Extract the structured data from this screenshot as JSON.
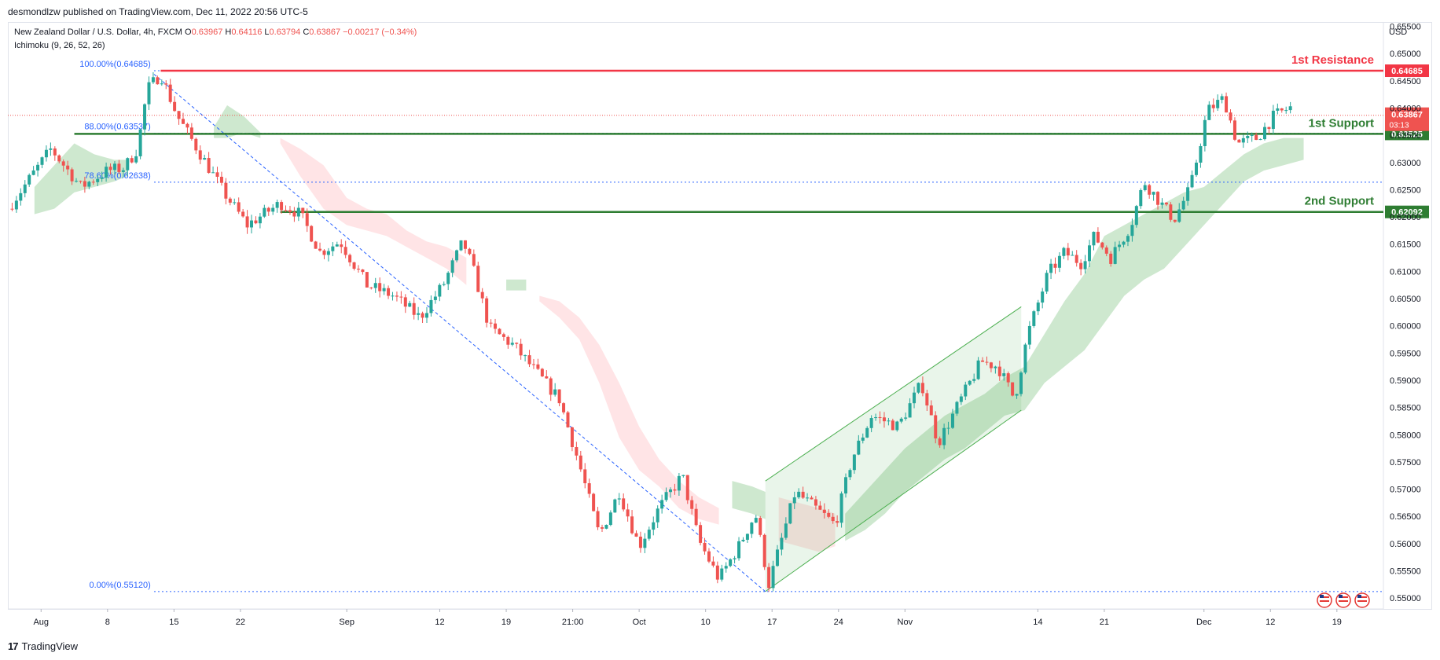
{
  "header": {
    "publisher": "desmondlzw published on TradingView.com, Dec 11, 2022 20:56 UTC-5",
    "symbol": "New Zealand Dollar / U.S. Dollar, 4h, FXCM",
    "ohlc": {
      "o_label": "O",
      "o": "0.63967",
      "h_label": "H",
      "h": "0.64116",
      "l_label": "L",
      "l": "0.63794",
      "c_label": "C",
      "c": "0.63867",
      "change": "−0.00217 (−0.34%)"
    },
    "indicator": "Ichimoku (9, 26, 52, 26)",
    "currency": "USD"
  },
  "footer": {
    "brand": "TradingView",
    "logo": "17"
  },
  "colors": {
    "up": "#26a69a",
    "down": "#ef5350",
    "resistance": "#f23645",
    "support": "#2e7d32",
    "fib": "#2962ff",
    "cloud_up": "#a5d6a7",
    "cloud_down": "#ffcdd2",
    "channel": "#4caf50"
  },
  "chart_data": {
    "type": "candlestick",
    "ylim": [
      0.548,
      0.6558
    ],
    "y_ticks": [
      "0.65500",
      "0.65000",
      "0.64500",
      "0.64000",
      "0.63500",
      "0.63000",
      "0.62500",
      "0.62000",
      "0.61500",
      "0.61000",
      "0.60500",
      "0.60000",
      "0.59500",
      "0.59000",
      "0.58500",
      "0.58000",
      "0.57500",
      "0.57000",
      "0.56500",
      "0.56000",
      "0.55500",
      "0.55000"
    ],
    "x_ticks": [
      {
        "label": "Aug",
        "x": 0.0
      },
      {
        "label": "8",
        "x": 2.0
      },
      {
        "label": "15",
        "x": 4.0
      },
      {
        "label": "22",
        "x": 6.0
      },
      {
        "label": "Sep",
        "x": 9.2
      },
      {
        "label": "12",
        "x": 12.0
      },
      {
        "label": "19",
        "x": 14.0
      },
      {
        "label": "21:00",
        "x": 16.0
      },
      {
        "label": "Oct",
        "x": 18.0
      },
      {
        "label": "10",
        "x": 20.0
      },
      {
        "label": "17",
        "x": 22.0
      },
      {
        "label": "24",
        "x": 24.0
      },
      {
        "label": "Nov",
        "x": 26.0
      },
      {
        "label": "14",
        "x": 30.0
      },
      {
        "label": "21",
        "x": 32.0
      },
      {
        "label": "Dec",
        "x": 35.0
      },
      {
        "label": "12",
        "x": 37.0
      },
      {
        "label": "19",
        "x": 39.0
      }
    ],
    "xlim": [
      -1.0,
      40.4
    ],
    "price_path": [
      [
        -1.0,
        0.6215
      ],
      [
        0.3,
        0.6325
      ],
      [
        1.2,
        0.6255
      ],
      [
        2.0,
        0.6285
      ],
      [
        2.5,
        0.629
      ],
      [
        2.9,
        0.6325
      ],
      [
        3.2,
        0.6435
      ],
      [
        3.6,
        0.6462
      ],
      [
        4.1,
        0.6385
      ],
      [
        4.7,
        0.6325
      ],
      [
        5.5,
        0.6245
      ],
      [
        6.2,
        0.6185
      ],
      [
        7.2,
        0.6225
      ],
      [
        7.8,
        0.6205
      ],
      [
        8.4,
        0.6135
      ],
      [
        9.0,
        0.6155
      ],
      [
        9.8,
        0.6075
      ],
      [
        10.6,
        0.6055
      ],
      [
        11.4,
        0.6015
      ],
      [
        12.1,
        0.6075
      ],
      [
        12.7,
        0.6155
      ],
      [
        13.0,
        0.6105
      ],
      [
        13.5,
        0.5995
      ],
      [
        14.2,
        0.5965
      ],
      [
        14.9,
        0.5915
      ],
      [
        15.6,
        0.5865
      ],
      [
        16.2,
        0.5745
      ],
      [
        16.8,
        0.5615
      ],
      [
        17.4,
        0.5695
      ],
      [
        18.0,
        0.5595
      ],
      [
        18.6,
        0.5665
      ],
      [
        19.3,
        0.5725
      ],
      [
        19.8,
        0.5605
      ],
      [
        20.4,
        0.5535
      ],
      [
        21.0,
        0.5595
      ],
      [
        21.5,
        0.5655
      ],
      [
        21.9,
        0.5525
      ],
      [
        22.7,
        0.5695
      ],
      [
        23.3,
        0.5665
      ],
      [
        23.9,
        0.5635
      ],
      [
        24.4,
        0.5755
      ],
      [
        25.0,
        0.5835
      ],
      [
        25.8,
        0.5815
      ],
      [
        26.5,
        0.5895
      ],
      [
        27.0,
        0.5785
      ],
      [
        27.6,
        0.5855
      ],
      [
        28.3,
        0.5935
      ],
      [
        28.8,
        0.5925
      ],
      [
        29.3,
        0.5865
      ],
      [
        29.7,
        0.5985
      ],
      [
        30.3,
        0.6095
      ],
      [
        30.8,
        0.6135
      ],
      [
        31.3,
        0.6115
      ],
      [
        31.7,
        0.6165
      ],
      [
        32.2,
        0.6125
      ],
      [
        32.8,
        0.6185
      ],
      [
        33.2,
        0.6265
      ],
      [
        33.7,
        0.6225
      ],
      [
        34.1,
        0.6195
      ],
      [
        34.6,
        0.6255
      ],
      [
        35.1,
        0.6395
      ],
      [
        35.6,
        0.6418
      ],
      [
        36.0,
        0.6335
      ],
      [
        36.6,
        0.6345
      ],
      [
        37.1,
        0.6385
      ],
      [
        37.6,
        0.6401
      ]
    ],
    "levels": [
      {
        "name": "1st Resistance",
        "value": 0.64685,
        "price_label": "0.64685",
        "color": "#f23645"
      },
      {
        "name": "1st Support",
        "value": 0.63525,
        "price_label": "0.63525",
        "color": "#2e7d32"
      },
      {
        "name": "2nd Support",
        "value": 0.62092,
        "price_label": "0.62092",
        "color": "#2e7d32"
      }
    ],
    "current_price": {
      "value": 0.63867,
      "label": "0.63867",
      "countdown": "03:13"
    },
    "fibonacci": [
      {
        "label": "100.00%(0.64685)",
        "value": 0.64685
      },
      {
        "label": "88.00%(0.63537)",
        "value": 0.63537
      },
      {
        "label": "78.60%(0.62638)",
        "value": 0.62638
      },
      {
        "label": "0.00%(0.55120)",
        "value": 0.5512
      }
    ],
    "fib_trendline": [
      [
        3.4,
        0.6462
      ],
      [
        21.8,
        0.5512
      ]
    ],
    "channel": {
      "upper": [
        [
          21.8,
          0.5715
        ],
        [
          29.5,
          0.6035
        ]
      ],
      "lower": [
        [
          21.8,
          0.5512
        ],
        [
          29.5,
          0.5845
        ]
      ]
    },
    "cloud": [
      {
        "color": "green",
        "path": [
          [
            -0.2,
            0.6255,
            0.6205
          ],
          [
            0.4,
            0.6295,
            0.6215
          ],
          [
            1.0,
            0.6335,
            0.6245
          ],
          [
            1.6,
            0.6315,
            0.6255
          ],
          [
            2.2,
            0.6305,
            0.6265
          ],
          [
            2.6,
            0.6305,
            0.6275
          ]
        ]
      },
      {
        "color": "green",
        "path": [
          [
            5.2,
            0.6365,
            0.6345
          ],
          [
            5.6,
            0.6405,
            0.6345
          ],
          [
            6.1,
            0.6385,
            0.6355
          ],
          [
            6.6,
            0.6355,
            0.6345
          ]
        ]
      },
      {
        "color": "red",
        "path": [
          [
            7.2,
            0.6345,
            0.6335
          ],
          [
            7.8,
            0.6325,
            0.6275
          ],
          [
            8.5,
            0.6295,
            0.6215
          ],
          [
            9.2,
            0.6235,
            0.6185
          ],
          [
            9.8,
            0.6215,
            0.6175
          ],
          [
            10.4,
            0.6205,
            0.6165
          ],
          [
            11.0,
            0.6175,
            0.6145
          ],
          [
            11.6,
            0.6155,
            0.6125
          ],
          [
            12.2,
            0.6145,
            0.6105
          ],
          [
            12.8,
            0.6125,
            0.6075
          ]
        ]
      },
      {
        "color": "green",
        "path": [
          [
            14.0,
            0.6085,
            0.6065
          ],
          [
            14.6,
            0.6085,
            0.6065
          ]
        ]
      },
      {
        "color": "red",
        "path": [
          [
            15.0,
            0.6055,
            0.6045
          ],
          [
            15.6,
            0.6045,
            0.6015
          ],
          [
            16.2,
            0.6015,
            0.5975
          ],
          [
            16.8,
            0.5965,
            0.5895
          ],
          [
            17.4,
            0.5895,
            0.5795
          ],
          [
            18.0,
            0.5815,
            0.5735
          ],
          [
            18.6,
            0.5755,
            0.5705
          ],
          [
            19.2,
            0.5715,
            0.5665
          ],
          [
            19.8,
            0.5685,
            0.5645
          ],
          [
            20.4,
            0.5665,
            0.5635
          ]
        ]
      },
      {
        "color": "green",
        "path": [
          [
            20.8,
            0.5715,
            0.5665
          ],
          [
            21.4,
            0.5705,
            0.5655
          ],
          [
            21.8,
            0.5695,
            0.5645
          ]
        ]
      },
      {
        "color": "red",
        "path": [
          [
            22.2,
            0.5685,
            0.5605
          ],
          [
            22.8,
            0.5675,
            0.5595
          ],
          [
            23.4,
            0.5665,
            0.5585
          ],
          [
            23.9,
            0.5655,
            0.5595
          ]
        ]
      },
      {
        "color": "green",
        "path": [
          [
            24.2,
            0.5655,
            0.5605
          ],
          [
            24.8,
            0.5695,
            0.5625
          ],
          [
            25.4,
            0.5735,
            0.5655
          ],
          [
            26.0,
            0.5775,
            0.5695
          ],
          [
            26.6,
            0.5805,
            0.5725
          ],
          [
            27.2,
            0.5835,
            0.5755
          ],
          [
            27.8,
            0.5855,
            0.5775
          ],
          [
            28.4,
            0.5875,
            0.5805
          ],
          [
            29.0,
            0.5905,
            0.5835
          ],
          [
            29.6,
            0.5925,
            0.5845
          ],
          [
            30.2,
            0.5985,
            0.5895
          ],
          [
            30.8,
            0.6045,
            0.5925
          ],
          [
            31.4,
            0.6095,
            0.5955
          ],
          [
            32.0,
            0.6165,
            0.6005
          ],
          [
            32.6,
            0.6185,
            0.6055
          ],
          [
            33.2,
            0.6205,
            0.6085
          ],
          [
            33.8,
            0.6225,
            0.6105
          ],
          [
            34.4,
            0.6245,
            0.6145
          ],
          [
            35.0,
            0.6255,
            0.6185
          ],
          [
            35.6,
            0.6285,
            0.6225
          ],
          [
            36.2,
            0.6315,
            0.6265
          ],
          [
            36.8,
            0.6335,
            0.6285
          ],
          [
            37.4,
            0.6345,
            0.6295
          ],
          [
            38.0,
            0.6345,
            0.6305
          ]
        ]
      }
    ]
  }
}
